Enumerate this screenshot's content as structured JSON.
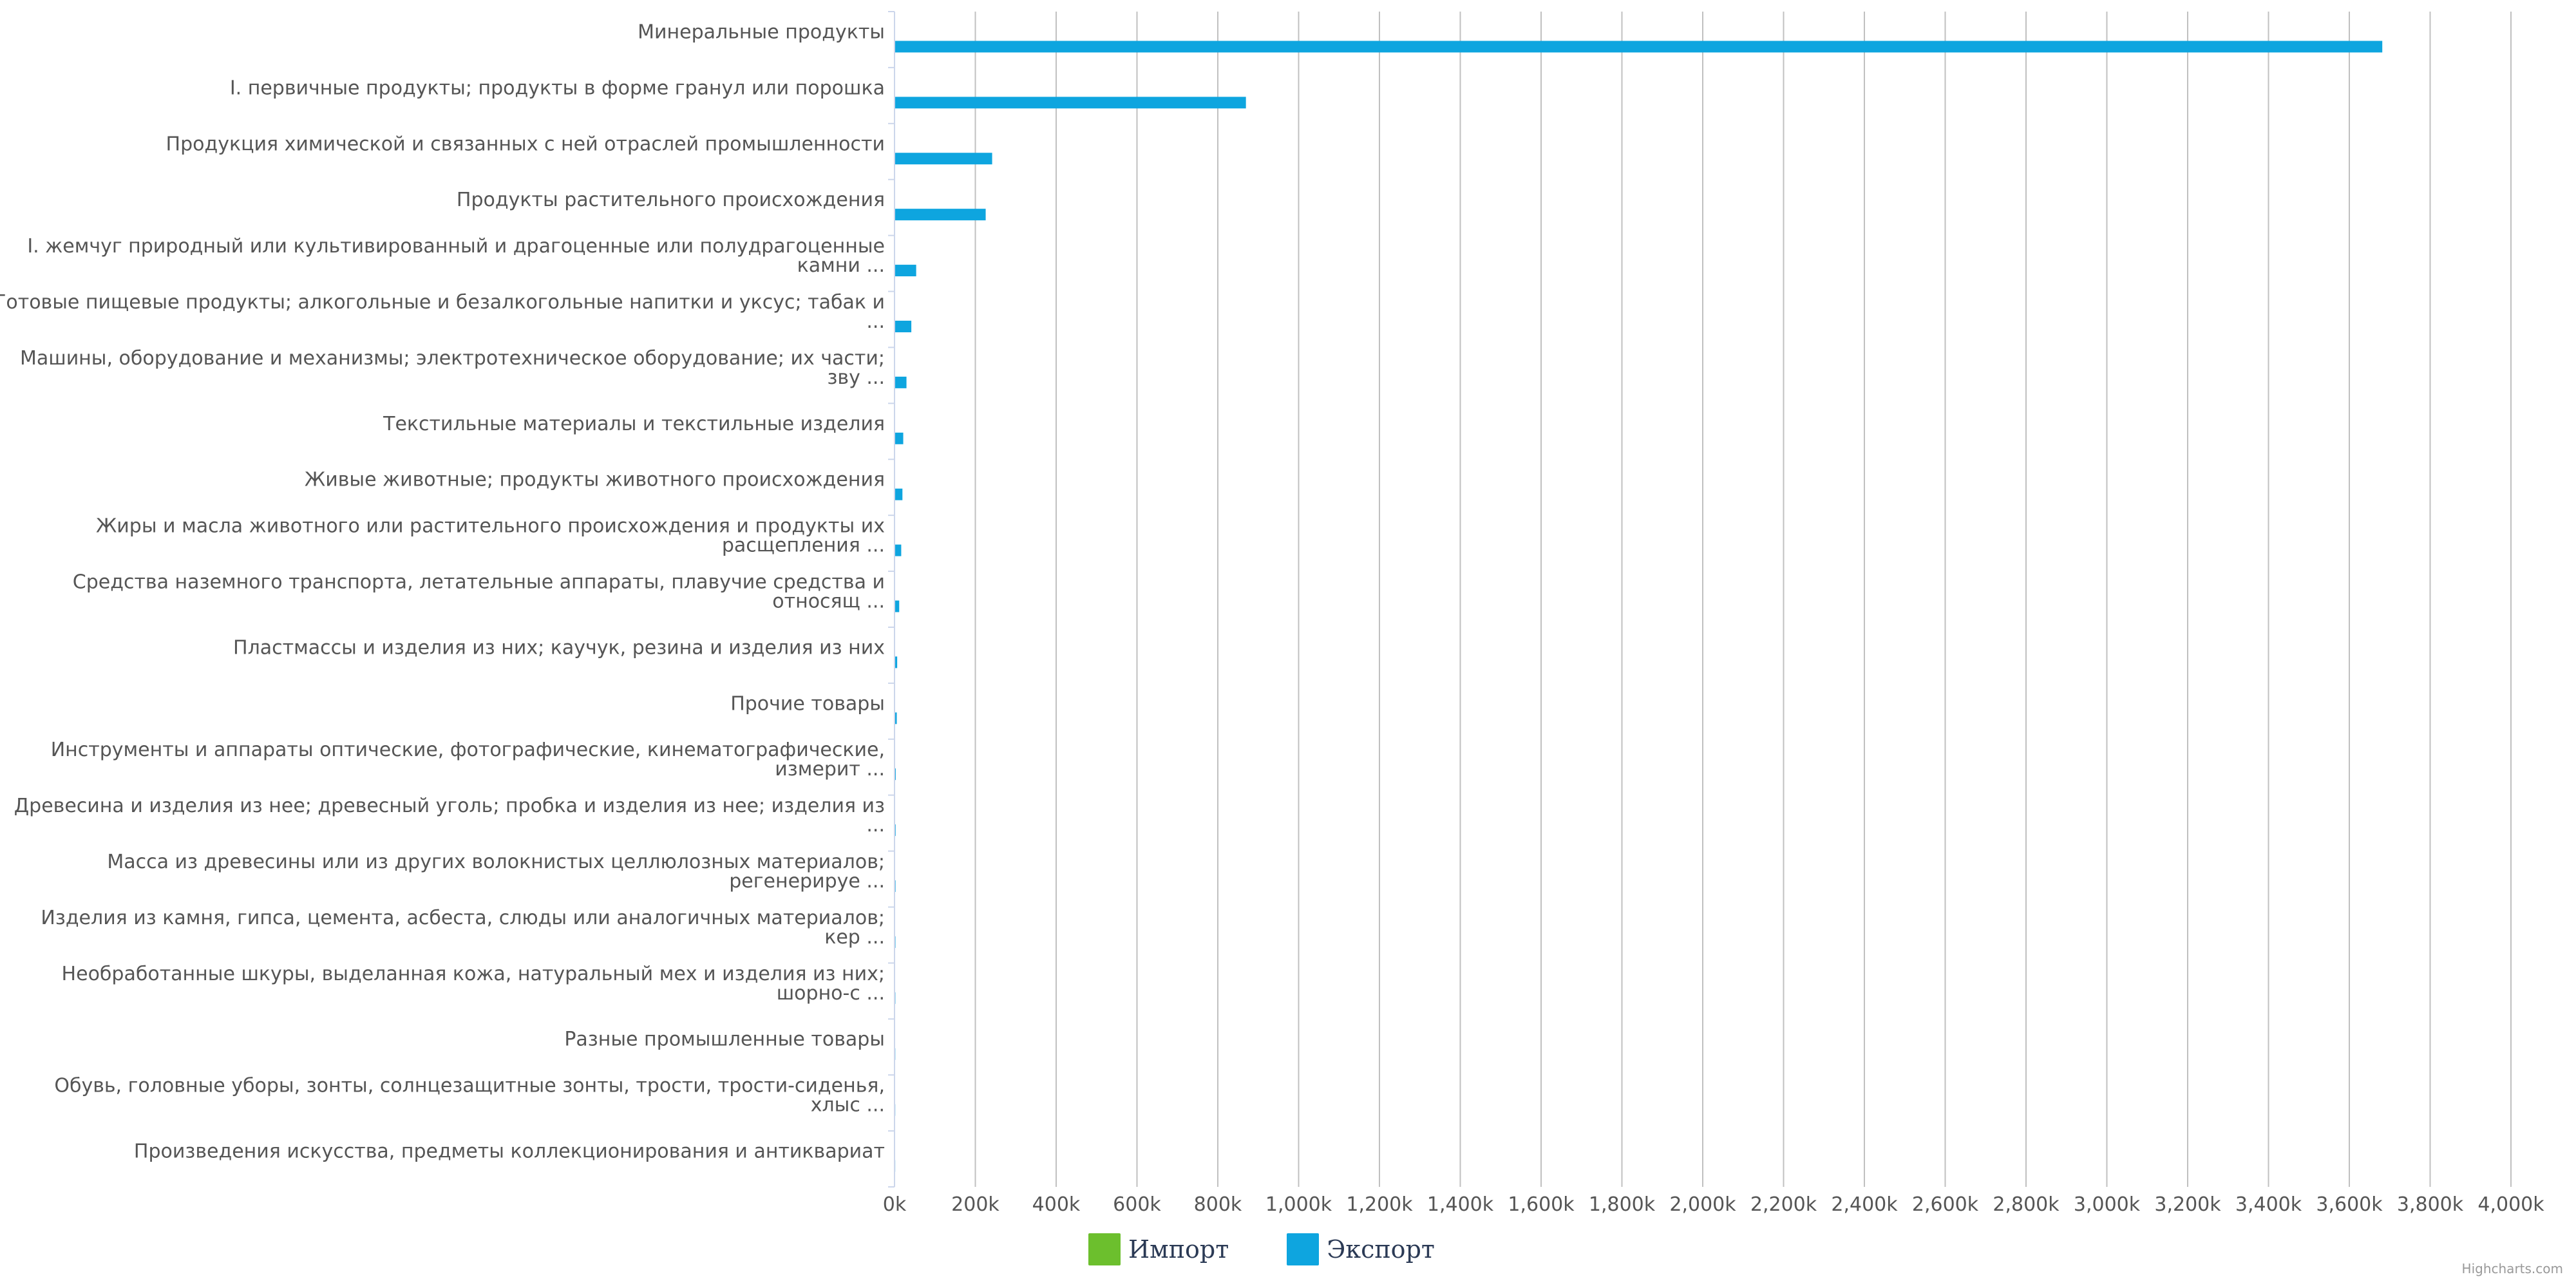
{
  "chart_data": {
    "type": "bar",
    "orientation": "horizontal",
    "categories": [
      [
        "Минеральные продукты"
      ],
      [
        "I. первичные продукты; продукты в форме гранул или порошка"
      ],
      [
        "Продукция химической и связанных с ней отраслей промышленности"
      ],
      [
        "Продукты растительного происхождения"
      ],
      [
        "I. жемчуг природный или культивированный и драгоценные или полудрагоценные",
        "камни ..."
      ],
      [
        "Готовые пищевые продукты; алкогольные и безалкогольные напитки и уксус; табак и",
        "..."
      ],
      [
        "Машины, оборудование и механизмы; электротехническое оборудование; их части;",
        "зву ..."
      ],
      [
        "Текстильные материалы и текстильные изделия"
      ],
      [
        "Живые животные; продукты животного происхождения"
      ],
      [
        "Жиры и масла животного или растительного происхождения и продукты их",
        "расщепления ..."
      ],
      [
        "Средства наземного транспорта, летательные аппараты, плавучие средства и",
        "относящ ..."
      ],
      [
        "Пластмассы и изделия из них; каучук, резина и изделия из них"
      ],
      [
        "Прочие товары"
      ],
      [
        "Инструменты и аппараты оптические, фотографические, кинематографические,",
        "измерит ..."
      ],
      [
        "Древесина и изделия из нее; древесный уголь; пробка и изделия из нее; изделия из",
        "..."
      ],
      [
        "Масса из древесины или из других волокнистых целлюлозных материалов;",
        "регенерируе ..."
      ],
      [
        "Изделия из камня, гипса, цемента, асбеста, слюды или аналогичных материалов;",
        "кер ..."
      ],
      [
        "Необработанные шкуры, выделанная кожа, натуральный мех и изделия из них;",
        "шорно-с ..."
      ],
      [
        "Разные промышленные товары"
      ],
      [
        "Обувь, головные уборы, зонты, солнцезащитные зонты, трости, трости-сиденья,",
        "хлыс ..."
      ],
      [
        "Произведения искусства, предметы коллекционирования и антиквариат"
      ]
    ],
    "series": [
      {
        "name": "Импорт",
        "color": "#6cbf2d",
        "values": [
          0,
          0,
          0,
          0,
          0,
          0,
          0,
          0,
          0,
          0,
          0,
          0,
          0,
          0,
          0,
          0,
          0,
          0,
          0,
          0,
          0
        ]
      },
      {
        "name": "Экспорт",
        "color": "#0ea5df",
        "values": [
          3680000,
          868000,
          240000,
          224000,
          52000,
          40000,
          28000,
          20000,
          18000,
          15000,
          10000,
          5000,
          4000,
          1500,
          1200,
          1000,
          800,
          600,
          400,
          300,
          200
        ]
      }
    ],
    "x_ticks": [
      "0k",
      "200k",
      "400k",
      "600k",
      "800k",
      "1,000k",
      "1,200k",
      "1,400k",
      "1,600k",
      "1,800k",
      "2,000k",
      "2,200k",
      "2,400k",
      "2,600k",
      "2,800k",
      "3,000k",
      "3,200k",
      "3,400k",
      "3,600k",
      "3,800k",
      "4,000k"
    ],
    "xlim": [
      0,
      4000000
    ],
    "grid": true,
    "legend": "bottom-center"
  },
  "credit": "Highcharts.com",
  "colors": {
    "gridline": "#c0c0c0",
    "axis": "#ccd6eb"
  }
}
